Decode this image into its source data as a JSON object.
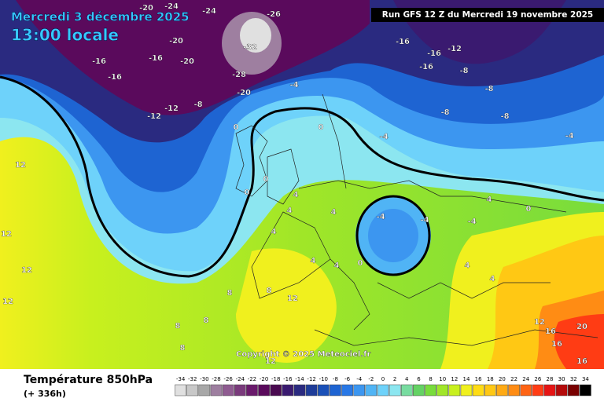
{
  "header": {
    "date": "Mercredi 3 décembre 2025",
    "time": "13:00 locale",
    "run": "Run GFS 12 Z du Mercredi 19 novembre 2025"
  },
  "copyright": "Copyright © 2025 Meteociel.fr",
  "footer": {
    "title": "Température 850hPa",
    "lead": "(+ 336h)"
  },
  "scale": {
    "values": [
      -34,
      -32,
      -30,
      -28,
      -26,
      -24,
      -22,
      -20,
      -18,
      -16,
      -14,
      -12,
      -10,
      -8,
      -6,
      -4,
      -2,
      0,
      2,
      4,
      6,
      8,
      10,
      12,
      14,
      16,
      18,
      20,
      22,
      24,
      26,
      28,
      30,
      32,
      34
    ],
    "colors": [
      "#e0e0e0",
      "#c8c8c8",
      "#a8a8a8",
      "#9e7fa0",
      "#8f5b91",
      "#7a3a7c",
      "#6a1a6c",
      "#5a0a5c",
      "#4a0a50",
      "#3a1a70",
      "#2a2a80",
      "#1e3c99",
      "#1a50b8",
      "#1e64d2",
      "#2878e6",
      "#3c96f0",
      "#50b4f5",
      "#6ed2fa",
      "#8ce6f0",
      "#78dca0",
      "#64d264",
      "#78dc3c",
      "#a0e628",
      "#c8f01e",
      "#f0f01e",
      "#ffdc14",
      "#ffc814",
      "#ffaa14",
      "#ff8c14",
      "#ff6414",
      "#ff3c14",
      "#e61414",
      "#b40a0a",
      "#780000",
      "#000000"
    ]
  },
  "contour_labels": [
    -20,
    -24,
    -26,
    -24,
    -20,
    -16,
    -16,
    -16,
    -20,
    -28,
    -32,
    -20,
    -12,
    -12,
    -8,
    -4,
    -16,
    -16,
    -12,
    -16,
    -8,
    -8,
    -8,
    -8,
    -4,
    -4,
    -4,
    0,
    0,
    0,
    0,
    4,
    4,
    4,
    -4,
    -4,
    0,
    4,
    4,
    4,
    8,
    8,
    8,
    12,
    12,
    12,
    12,
    12,
    12,
    8,
    8,
    4,
    12,
    16,
    16,
    16,
    20,
    0,
    4,
    4
  ]
}
